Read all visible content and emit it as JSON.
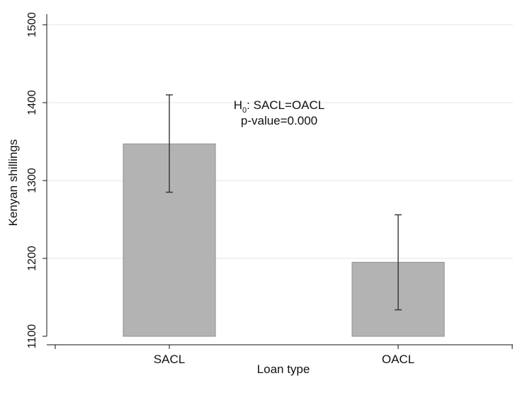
{
  "chart_data": {
    "type": "bar",
    "categories": [
      "SACL",
      "OACL"
    ],
    "values": [
      1347,
      1195
    ],
    "error_bars": [
      {
        "low": 1285,
        "high": 1410
      },
      {
        "low": 1134,
        "high": 1256
      }
    ],
    "title": "",
    "xlabel": "Loan type",
    "ylabel": "Kenyan shillings",
    "ylim": [
      1100,
      1500
    ],
    "yticks": [
      1100,
      1200,
      1300,
      1400,
      1500
    ],
    "grid": true,
    "legend": "none",
    "annotation": {
      "line1_prefix": "H",
      "line1_subscript": "0",
      "line1_rest": ": SACL=OACL",
      "line2": "p-value=0.000"
    },
    "colors": {
      "bar_fill": "#b3b3b3",
      "bar_stroke": "#999999",
      "error_bar": "#333333",
      "grid": "#eaeaea",
      "axis": "#111111"
    }
  }
}
